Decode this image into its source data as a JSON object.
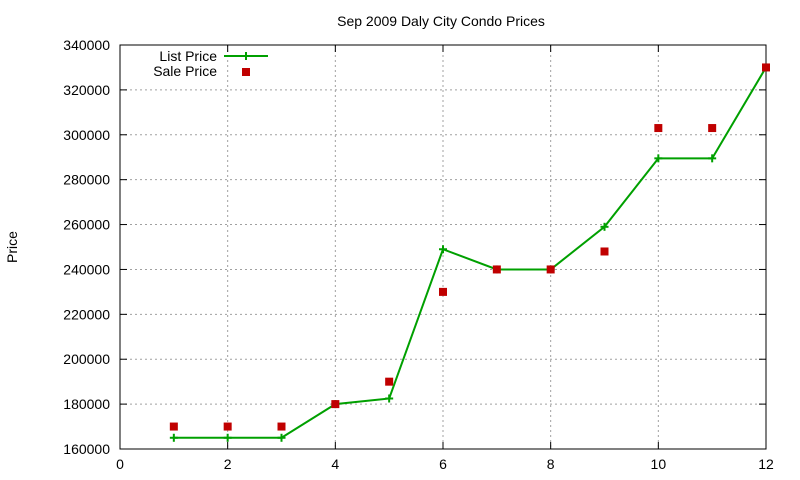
{
  "chart_data": {
    "type": "line",
    "title": "Sep 2009 Daly City Condo Prices",
    "xlabel": "",
    "ylabel": "Price",
    "xlim": [
      0,
      12
    ],
    "ylim": [
      160000,
      340000
    ],
    "xticks": [
      0,
      2,
      4,
      6,
      8,
      10,
      12
    ],
    "yticks": [
      160000,
      180000,
      200000,
      220000,
      240000,
      260000,
      280000,
      300000,
      320000,
      340000
    ],
    "grid": true,
    "legend_position": "top-left",
    "series": [
      {
        "name": "List Price",
        "style": "line-with-plus-markers",
        "color": "#00a000",
        "x": [
          1,
          2,
          3,
          4,
          5,
          6,
          7,
          8,
          9,
          10,
          11,
          12
        ],
        "y": [
          165000,
          165000,
          165000,
          180000,
          182500,
          249000,
          240000,
          240000,
          259000,
          289500,
          289500,
          330000
        ]
      },
      {
        "name": "Sale Price",
        "style": "square-points",
        "color": "#c00000",
        "x": [
          1,
          2,
          3,
          4,
          5,
          6,
          7,
          8,
          9,
          10,
          11,
          12
        ],
        "y": [
          170000,
          170000,
          170000,
          180000,
          190000,
          230000,
          240000,
          240000,
          248000,
          303000,
          303000,
          330000
        ]
      }
    ]
  }
}
